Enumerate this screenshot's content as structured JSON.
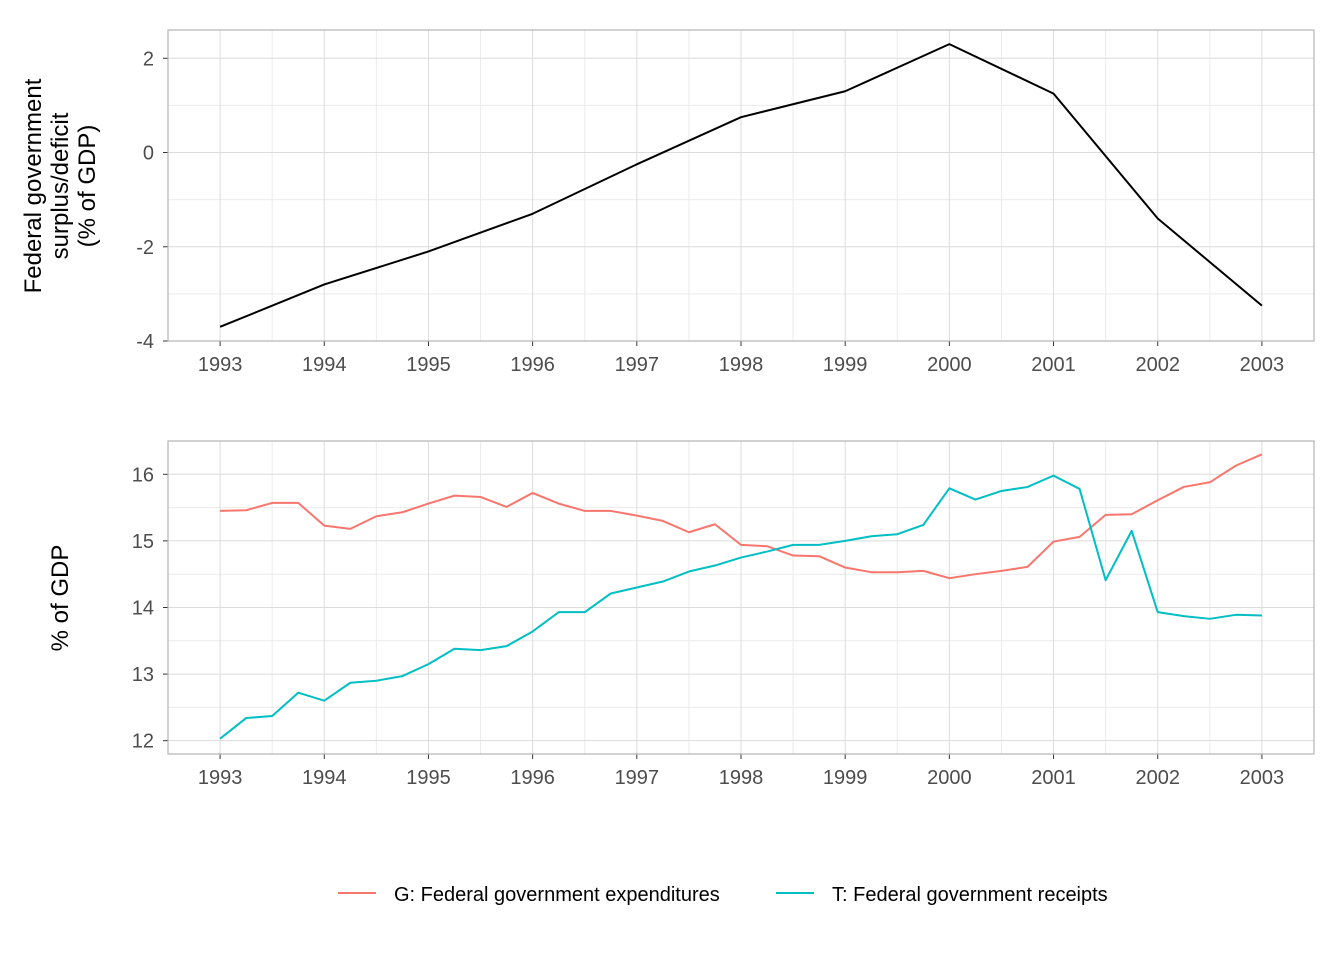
{
  "chart_data": [
    {
      "type": "line",
      "title": "",
      "xlabel": "",
      "ylabel": [
        "Federal government",
        "surplus/deficit",
        "(% of GDP)"
      ],
      "xlim": [
        1992.5,
        2003.5
      ],
      "ylim": [
        -4,
        2.6
      ],
      "x_ticks": [
        1993,
        1994,
        1995,
        1996,
        1997,
        1998,
        1999,
        2000,
        2001,
        2002,
        2003
      ],
      "y_ticks": [
        -4,
        -2,
        0,
        2
      ],
      "grid": true,
      "series": [
        {
          "color": "#000000",
          "x": [
            1993,
            1994,
            1995,
            1996,
            1997,
            1998,
            1999,
            2000,
            2001,
            2002,
            2003
          ],
          "y": [
            -3.7,
            -2.8,
            -2.1,
            -1.3,
            -0.25,
            0.75,
            1.3,
            2.3,
            1.25,
            -1.4,
            -3.25
          ]
        }
      ]
    },
    {
      "type": "line",
      "title": "",
      "xlabel": "",
      "ylabel": [
        "% of GDP"
      ],
      "xlim": [
        1992.5,
        2003.5
      ],
      "ylim": [
        11.8,
        16.5
      ],
      "x_ticks": [
        1993,
        1994,
        1995,
        1996,
        1997,
        1998,
        1999,
        2000,
        2001,
        2002,
        2003
      ],
      "y_ticks": [
        12,
        13,
        14,
        15,
        16
      ],
      "grid": true,
      "legend_position": "bottom",
      "series": [
        {
          "name": "G: Federal government expenditures",
          "color": "#F8766D",
          "x": [
            1993,
            1993.25,
            1993.5,
            1993.75,
            1994,
            1994.25,
            1994.5,
            1994.75,
            1995,
            1995.25,
            1995.5,
            1995.75,
            1996,
            1996.25,
            1996.5,
            1996.75,
            1997,
            1997.25,
            1997.5,
            1997.75,
            1998,
            1998.25,
            1998.5,
            1998.75,
            1999,
            1999.25,
            1999.5,
            1999.75,
            2000,
            2000.25,
            2000.5,
            2000.75,
            2001,
            2001.25,
            2001.5,
            2001.75,
            2002,
            2002.25,
            2002.5,
            2002.75,
            2003
          ],
          "y": [
            15.45,
            15.46,
            15.57,
            15.57,
            15.23,
            15.18,
            15.37,
            15.43,
            15.56,
            15.68,
            15.66,
            15.51,
            15.72,
            15.56,
            15.45,
            15.45,
            15.38,
            15.3,
            15.13,
            15.25,
            14.94,
            14.92,
            14.78,
            14.77,
            14.6,
            14.53,
            14.53,
            14.55,
            14.44,
            14.5,
            14.55,
            14.61,
            14.99,
            15.06,
            15.39,
            15.4,
            15.61,
            15.81,
            15.88,
            16.13,
            16.3
          ]
        },
        {
          "name": "T: Federal government receipts",
          "color": "#00BFC4",
          "x": [
            1993,
            1993.25,
            1993.5,
            1993.75,
            1994,
            1994.25,
            1994.5,
            1994.75,
            1995,
            1995.25,
            1995.5,
            1995.75,
            1996,
            1996.25,
            1996.5,
            1996.75,
            1997,
            1997.25,
            1997.5,
            1997.75,
            1998,
            1998.25,
            1998.5,
            1998.75,
            1999,
            1999.25,
            1999.5,
            1999.75,
            2000,
            2000.25,
            2000.5,
            2000.75,
            2001,
            2001.25,
            2001.5,
            2001.75,
            2002,
            2002.25,
            2002.5,
            2002.75,
            2003
          ],
          "y": [
            12.03,
            12.34,
            12.37,
            12.72,
            12.6,
            12.87,
            12.9,
            12.97,
            13.15,
            13.38,
            13.36,
            13.42,
            13.64,
            13.93,
            13.93,
            14.21,
            14.3,
            14.39,
            14.54,
            14.63,
            14.75,
            14.84,
            14.94,
            14.94,
            15.0,
            15.07,
            15.1,
            15.24,
            15.79,
            15.62,
            15.75,
            15.81,
            15.98,
            15.78,
            14.41,
            15.15,
            13.93,
            13.87,
            13.83,
            13.89,
            13.88
          ]
        }
      ]
    }
  ]
}
